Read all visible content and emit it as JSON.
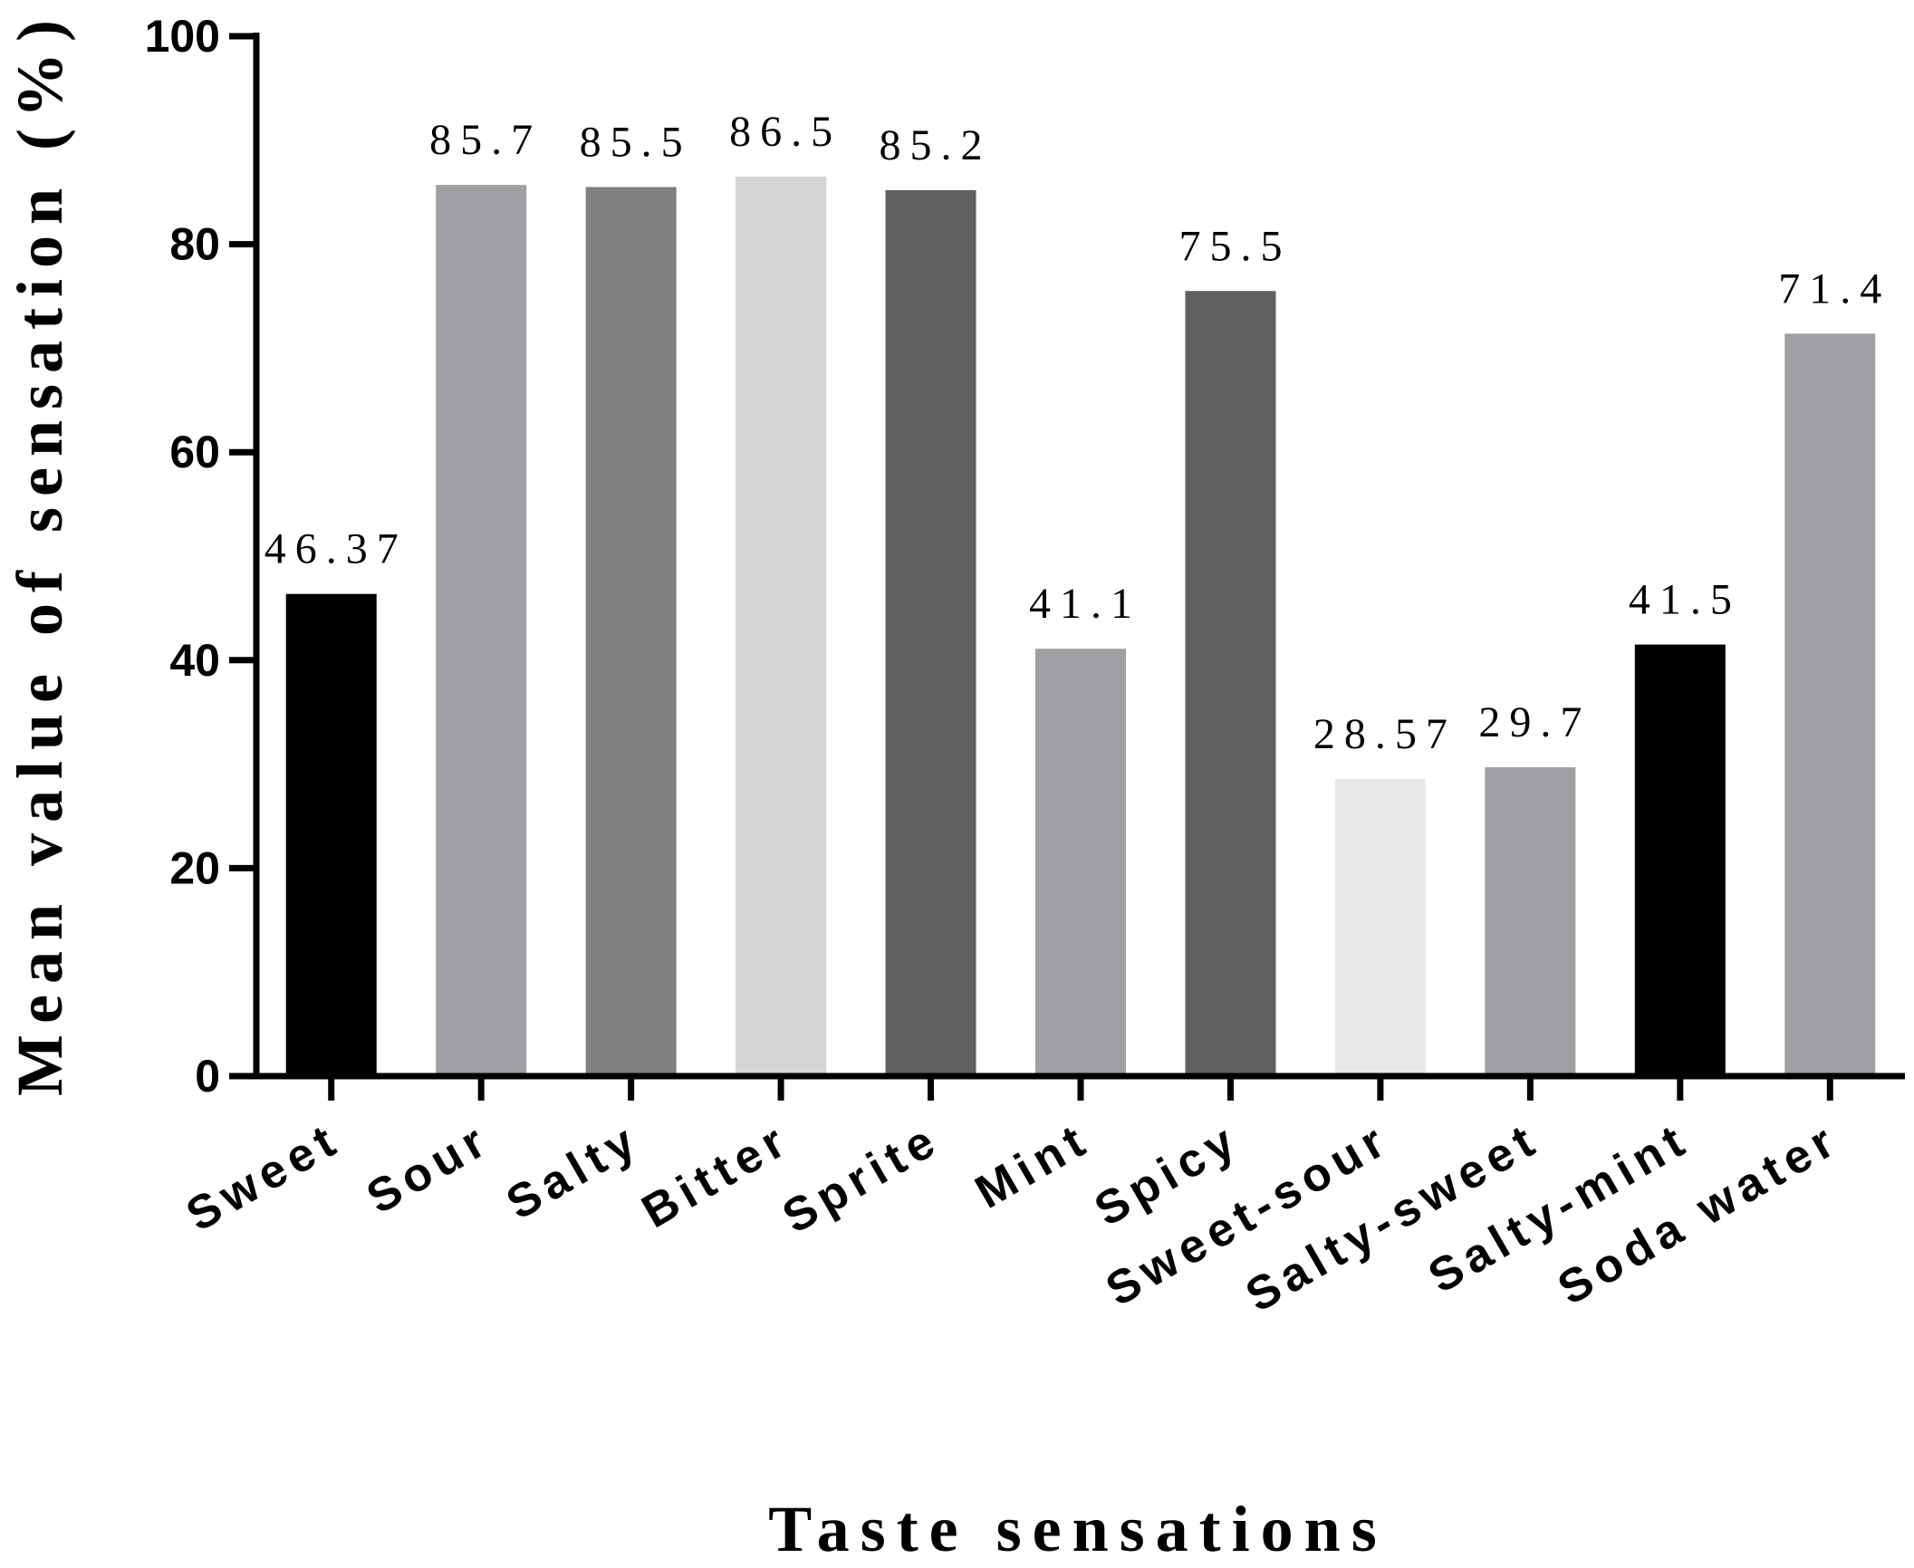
{
  "chart_data": {
    "type": "bar",
    "title": "",
    "xlabel": "Taste sensations",
    "ylabel": "Mean value of sensation (%)",
    "ylim": [
      0,
      100
    ],
    "yticks": [
      0,
      20,
      40,
      60,
      80,
      100
    ],
    "grid": false,
    "categories": [
      "Sweet",
      "Sour",
      "Salty",
      "Bitter",
      "Sprite",
      "Mint",
      "Spicy",
      "Sweet-sour",
      "Salty-sweet",
      "Salty-mint",
      "Soda water"
    ],
    "values": [
      46.37,
      85.7,
      85.5,
      86.5,
      85.2,
      41.1,
      75.5,
      28.57,
      29.7,
      41.5,
      71.4
    ],
    "value_labels": [
      "46.37",
      "85.7",
      "85.5",
      "86.5",
      "85.2",
      "41.1",
      "75.5",
      "28.57",
      "29.7",
      "41.5",
      "71.4"
    ],
    "bar_colors": [
      "#000000",
      "#a0a0a4",
      "#808080",
      "#d4d4d4",
      "#5f5f5f",
      "#a0a0a4",
      "#606060",
      "#e8e8e8",
      "#a0a0a4",
      "#000000",
      "#a0a0a4"
    ]
  }
}
